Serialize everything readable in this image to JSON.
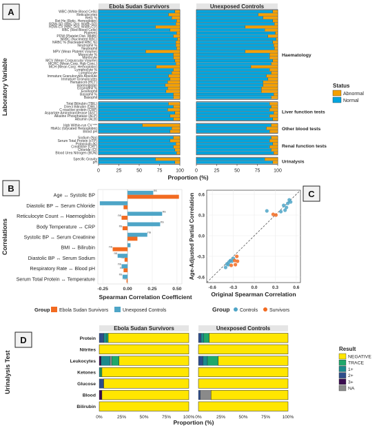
{
  "colors": {
    "abnormal": "#F5A000",
    "normal": "#00A5DF",
    "survivors": "#F26B21",
    "controls": "#4EA5C7",
    "negative": "#FFE600",
    "trace": "#1FA86A",
    "p1": "#1B8A8C",
    "p2": "#2E4D8A",
    "p3": "#3A0B4F",
    "na": "#8A8A8A",
    "strip": "#E5E5E5"
  },
  "chart_data": [
    {
      "id": "A",
      "type": "bar",
      "stacked": true,
      "orientation": "horizontal",
      "panel_letter": "A",
      "facets": [
        "Ebola Sudan Survivors",
        "Unexposed Controls"
      ],
      "ylabel": "Laboratory Variable",
      "xlabel": "Proportion (%)",
      "xticks": [
        "0",
        "25",
        "50",
        "75",
        "100"
      ],
      "xlim": [
        0,
        100
      ],
      "legend": {
        "title": "Status",
        "items": [
          "Abnormal",
          "Normal"
        ],
        "position": "right"
      },
      "groups": [
        {
          "name": "Haematology",
          "items": [
            {
              "label": "WBC (White Blood Cells)",
              "survivors": 6,
              "controls": 6
            },
            {
              "label": "Reticulocytes",
              "survivors": 14,
              "controls": 24
            },
            {
              "label": "Retic %",
              "survivors": 10,
              "controls": 18
            },
            {
              "label": "Ret He (Retic. Hemoglobin)",
              "survivors": 4,
              "controls": 6
            },
            {
              "label": "RDW-SD (RBC Dist. Width-SD)",
              "survivors": 5,
              "controls": 4
            },
            {
              "label": "RDW-CV (RBC Dist. Width-CV)",
              "survivors": 30,
              "controls": 40
            },
            {
              "label": "RBC (Red Blood Cells)",
              "survivors": 12,
              "controls": 16
            },
            {
              "label": "Platelets",
              "survivors": 4,
              "controls": 3
            },
            {
              "label": "PDW (Platelet Dist. Width)",
              "survivors": 8,
              "controls": 12
            },
            {
              "label": "NRBC (Nucleated RBC)",
              "survivors": 3,
              "controls": 2
            },
            {
              "label": "NRBC % (Nucleated RBC %)",
              "survivors": 5,
              "controls": 6
            },
            {
              "label": "Neutrophil %",
              "survivors": 5,
              "controls": 5
            },
            {
              "label": "Neutrophil",
              "survivors": 4,
              "controls": 4
            },
            {
              "label": "MPV (Mean Platelet Volume)",
              "survivors": 42,
              "controls": 40
            },
            {
              "label": "Monocyte %",
              "survivors": 8,
              "controls": 10
            },
            {
              "label": "Monocyte",
              "survivors": 8,
              "controls": 10
            },
            {
              "label": "MCV (Mean Corpuscular Volume)",
              "survivors": 6,
              "controls": 6
            },
            {
              "label": "MCHC (Mean Corp. Hgb Conc.)",
              "survivors": 5,
              "controls": 8
            },
            {
              "label": "MCH (Mean Corp. Hemoglobin)",
              "survivors": 29,
              "controls": 33
            },
            {
              "label": "Lymphocyte %",
              "survivors": 8,
              "controls": 10
            },
            {
              "label": "Lymphocyte",
              "survivors": 10,
              "controls": 8
            },
            {
              "label": "Immature Granulocytes Absolute",
              "survivors": 14,
              "controls": 14
            },
            {
              "label": "Immature Granulocytes",
              "survivors": 12,
              "controls": 12
            },
            {
              "label": "Hematocrit (HCT)",
              "survivors": 15,
              "controls": 18
            },
            {
              "label": "Haemoglobin",
              "survivors": 18,
              "controls": 18
            },
            {
              "label": "Eosinophil %",
              "survivors": 15,
              "controls": 20
            },
            {
              "label": "Eosinophil",
              "survivors": 17,
              "controls": 20
            },
            {
              "label": "Basophil %",
              "survivors": 8,
              "controls": 5
            },
            {
              "label": "Basophil",
              "survivors": 8,
              "controls": 8
            }
          ]
        },
        {
          "name": "Liver function tests",
          "items": [
            {
              "label": "Total Bilirubin (TBIL)",
              "survivors": 14,
              "controls": 10
            },
            {
              "label": "Direct Bilirubin (DBIL)",
              "survivors": 8,
              "controls": 8
            },
            {
              "label": "C-reactive protein (CRP)",
              "survivors": 15,
              "controls": 10
            },
            {
              "label": "Aspartate Aminotransferase (AST)",
              "survivors": 6,
              "controls": 5
            },
            {
              "label": "Alkaline Phosphatase (ALP)",
              "survivors": 12,
              "controls": 10
            },
            {
              "label": "Albumin (ALB)",
              "survivors": 8,
              "controls": 6
            }
          ]
        },
        {
          "name": "Other blood tests",
          "items": [
            {
              "label": "Hgb Within-run CV ***",
              "survivors": 46,
              "controls": 8
            },
            {
              "label": "HbA1c (Glycated Hemoglobin)",
              "survivors": 10,
              "controls": 14
            },
            {
              "label": "Blood pH",
              "survivors": 12,
              "controls": 10
            }
          ]
        },
        {
          "name": "Renal function tests",
          "items": [
            {
              "label": "Sodium (Na)",
              "survivors": 8,
              "controls": 8
            },
            {
              "label": "Serum Total Protein (sTP)",
              "survivors": 12,
              "controls": 10
            },
            {
              "label": "Potassium (K)",
              "survivors": 5,
              "controls": 6
            },
            {
              "label": "Creatinine (CRT)",
              "survivors": 8,
              "controls": 10
            },
            {
              "label": "Chloride (Cl)",
              "survivors": 6,
              "controls": 8
            },
            {
              "label": "Blood Urea Nitrogen (BUN)",
              "survivors": 4,
              "controls": 5
            }
          ]
        },
        {
          "name": "Urinalysis",
          "items": [
            {
              "label": "Specific Gravity",
              "survivors": 30,
              "controls": 16
            },
            {
              "label": "pH",
              "survivors": 6,
              "controls": 6
            }
          ]
        }
      ]
    },
    {
      "id": "B",
      "type": "bar",
      "orientation": "horizontal",
      "panel_letter": "B",
      "ylabel": "Correlations",
      "xlabel": "Spearman Correlation Coefficient",
      "xticks": [
        -0.25,
        0.0,
        0.25,
        0.5
      ],
      "xtick_labels": [
        "-0.25",
        "0.00",
        "0.25",
        "0.50"
      ],
      "xlim": [
        -0.3,
        0.55
      ],
      "categories": [
        "Age ↔ Systolic BP",
        "Diastolic BP ↔ Serum Chloride",
        "Reticulocyte Count ↔ Haemoglobin",
        "Body Temperature ↔ CRP",
        "Systolic BP ↔ Serum Creatinine",
        "BMI ↔ Bilirubin",
        "Diastolic BP ↔ Serum Sodium",
        "Respiratory Rate ↔ Blood pH",
        "Serum Total Protein ↔ Temperature"
      ],
      "series": [
        {
          "name": "Ebola Sudan Survivors",
          "values": [
            0.52,
            -0.04,
            -0.06,
            -0.05,
            0.1,
            -0.15,
            -0.03,
            -0.04,
            -0.01
          ],
          "labels": [
            "",
            "",
            "ns",
            "ns",
            "",
            "ns",
            "ns",
            "ns",
            "ns"
          ]
        },
        {
          "name": "Unexposed Controls",
          "values": [
            0.26,
            -0.28,
            0.35,
            0.33,
            0.2,
            0.03,
            -0.1,
            -0.06,
            -0.05
          ],
          "labels": [
            "ns",
            "",
            "ns",
            "ns",
            "ns",
            "",
            "ns",
            "ns",
            "ns"
          ]
        }
      ],
      "legend": {
        "title": "Group",
        "items": [
          "Ebola Sudan Survivors",
          "Unexposed Controls"
        ],
        "position": "bottom"
      }
    },
    {
      "id": "C",
      "type": "scatter",
      "panel_letter": "C",
      "xlabel": "Original Spearman Correlation",
      "ylabel": "Age-Adjusted Partial Correlation",
      "xticks": [
        -0.6,
        -0.3,
        0.0,
        0.3,
        0.6
      ],
      "yticks": [
        -0.6,
        -0.3,
        0.0,
        0.3,
        0.6
      ],
      "xlim": [
        -0.68,
        0.66
      ],
      "ylim": [
        -0.68,
        0.66
      ],
      "identity_line": true,
      "series": [
        {
          "name": "Controls",
          "points": [
            [
              0.5,
              0.52
            ],
            [
              0.48,
              0.47
            ],
            [
              0.42,
              0.44
            ],
            [
              0.44,
              0.37
            ],
            [
              0.38,
              0.35
            ],
            [
              0.52,
              0.49
            ],
            [
              0.46,
              0.41
            ],
            [
              0.18,
              0.36
            ],
            [
              -0.3,
              -0.33
            ],
            [
              -0.36,
              -0.38
            ],
            [
              -0.34,
              -0.36
            ],
            [
              -0.39,
              -0.41
            ],
            [
              -0.41,
              -0.46
            ],
            [
              -0.37,
              -0.42
            ],
            [
              -0.32,
              -0.37
            ]
          ]
        },
        {
          "name": "Survivors",
          "points": [
            [
              0.27,
              0.31
            ],
            [
              0.31,
              0.3
            ],
            [
              -0.25,
              -0.3
            ],
            [
              -0.28,
              -0.36
            ],
            [
              -0.24,
              -0.37
            ],
            [
              -0.27,
              -0.42
            ],
            [
              -0.33,
              -0.43
            ]
          ]
        }
      ],
      "legend": {
        "title": "Group",
        "items": [
          "Controls",
          "Survivors"
        ],
        "position": "bottom"
      }
    },
    {
      "id": "D",
      "type": "bar",
      "stacked": true,
      "orientation": "horizontal",
      "panel_letter": "D",
      "facets": [
        "Ebola Sudan Survivors",
        "Unexposed Controls"
      ],
      "ylabel": "Urinalysis Test",
      "xlabel": "Proportion (%)",
      "xticks": [
        "0%",
        "25%",
        "50%",
        "75%",
        "100%"
      ],
      "xlim": [
        0,
        100
      ],
      "result_levels": [
        "NEGATIVE",
        "TRACE",
        "1+",
        "2+",
        "3+",
        "NA"
      ],
      "legend": {
        "title": "Result",
        "items": [
          "NEGATIVE",
          "TRACE",
          "1+",
          "2+",
          "3+",
          "NA"
        ],
        "position": "right"
      },
      "categories": [
        "Protein",
        "Nitrites",
        "Leukocytes",
        "Ketones",
        "Glucose",
        "Blood",
        "Bilirubin"
      ],
      "survivors": [
        {
          "NEGATIVE": 90,
          "TRACE": 2,
          "1+": 3,
          "2+": 5,
          "3+": 0,
          "NA": 0
        },
        {
          "NEGATIVE": 100,
          "TRACE": 0,
          "1+": 0,
          "2+": 0,
          "3+": 0,
          "NA": 0
        },
        {
          "NEGATIVE": 78,
          "TRACE": 8,
          "1+": 10,
          "2+": 0,
          "3+": 2,
          "NA": 2
        },
        {
          "NEGATIVE": 97,
          "TRACE": 2,
          "1+": 1,
          "2+": 0,
          "3+": 0,
          "NA": 0
        },
        {
          "NEGATIVE": 95,
          "TRACE": 0,
          "1+": 0,
          "2+": 5,
          "3+": 0,
          "NA": 0
        },
        {
          "NEGATIVE": 97,
          "TRACE": 0,
          "1+": 0,
          "2+": 0,
          "3+": 3,
          "NA": 0
        },
        {
          "NEGATIVE": 100,
          "TRACE": 0,
          "1+": 0,
          "2+": 0,
          "3+": 0,
          "NA": 0
        }
      ],
      "controls": [
        {
          "NEGATIVE": 88,
          "TRACE": 6,
          "1+": 3,
          "2+": 3,
          "3+": 0,
          "NA": 0
        },
        {
          "NEGATIVE": 100,
          "TRACE": 0,
          "1+": 0,
          "2+": 0,
          "3+": 0,
          "NA": 0
        },
        {
          "NEGATIVE": 78,
          "TRACE": 12,
          "1+": 5,
          "2+": 5,
          "3+": 0,
          "NA": 0
        },
        {
          "NEGATIVE": 100,
          "TRACE": 0,
          "1+": 0,
          "2+": 0,
          "3+": 0,
          "NA": 0
        },
        {
          "NEGATIVE": 100,
          "TRACE": 0,
          "1+": 0,
          "2+": 0,
          "3+": 0,
          "NA": 0
        },
        {
          "NEGATIVE": 86,
          "TRACE": 0,
          "1+": 0,
          "2+": 2,
          "3+": 0,
          "NA": 12
        },
        {
          "NEGATIVE": 100,
          "TRACE": 0,
          "1+": 0,
          "2+": 0,
          "3+": 0,
          "NA": 0
        }
      ]
    }
  ]
}
